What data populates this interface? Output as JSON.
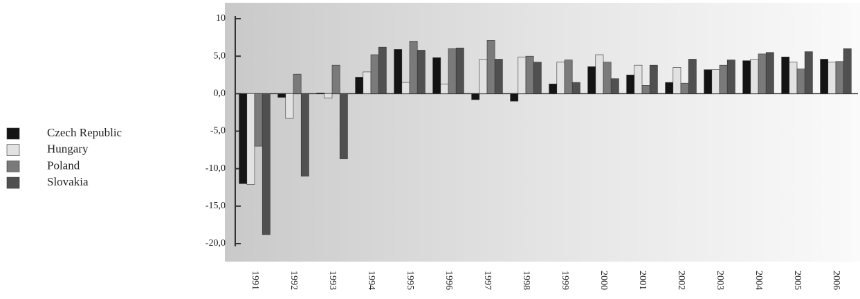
{
  "chart_data": {
    "type": "bar",
    "categories": [
      "1991",
      "1992",
      "1993",
      "1994",
      "1995",
      "1996",
      "1997",
      "1998",
      "1999",
      "2000",
      "2001",
      "2002",
      "2003",
      "2004",
      "2005",
      "2006"
    ],
    "series": [
      {
        "name": "Czech Republic",
        "color": "#141414",
        "values": [
          -12.0,
          -0.5,
          0.1,
          2.2,
          5.9,
          4.8,
          -0.8,
          -1.0,
          1.3,
          3.6,
          2.5,
          1.5,
          3.2,
          4.4,
          4.9,
          4.6
        ]
      },
      {
        "name": "Hungary",
        "color": "#e2e2e2",
        "values": [
          -12.1,
          -3.3,
          -0.6,
          2.9,
          1.5,
          1.3,
          4.6,
          4.9,
          4.2,
          5.2,
          3.8,
          3.5,
          3.2,
          4.6,
          4.2,
          4.2
        ]
      },
      {
        "name": "Poland",
        "color": "#7a7a7a",
        "values": [
          -7.0,
          2.6,
          3.8,
          5.2,
          7.0,
          6.0,
          7.1,
          5.0,
          4.5,
          4.2,
          1.1,
          1.4,
          3.8,
          5.3,
          3.3,
          4.3
        ]
      },
      {
        "name": "Slovakia",
        "color": "#505050",
        "values": [
          -18.8,
          -11.0,
          -8.7,
          6.2,
          5.8,
          6.1,
          4.6,
          4.2,
          1.5,
          2.0,
          3.8,
          4.6,
          4.5,
          5.5,
          5.6,
          6.0
        ]
      }
    ],
    "ylim": [
      -20,
      10
    ],
    "yticks": [
      {
        "value": -20,
        "label": "-20,0"
      },
      {
        "value": -15,
        "label": "-15,0"
      },
      {
        "value": -10,
        "label": "-10,0"
      },
      {
        "value": -5,
        "label": "-5,0"
      },
      {
        "value": 0,
        "label": "0,0"
      },
      {
        "value": 5,
        "label": "5,0"
      },
      10
    ],
    "legend": "left"
  }
}
